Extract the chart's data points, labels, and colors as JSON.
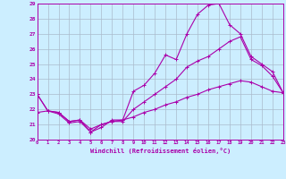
{
  "xlabel": "Windchill (Refroidissement éolien,°C)",
  "xlim": [
    0,
    23
  ],
  "ylim": [
    20,
    29
  ],
  "xticks": [
    0,
    1,
    2,
    3,
    4,
    5,
    6,
    7,
    8,
    9,
    10,
    11,
    12,
    13,
    14,
    15,
    16,
    17,
    18,
    19,
    20,
    21,
    22,
    23
  ],
  "yticks": [
    20,
    21,
    22,
    23,
    24,
    25,
    26,
    27,
    28,
    29
  ],
  "bg_color": "#cceeff",
  "line_color": "#aa00aa",
  "grid_color": "#aabbcc",
  "line1_y": [
    23.0,
    21.9,
    21.7,
    21.1,
    21.2,
    20.5,
    20.8,
    21.3,
    21.3,
    23.2,
    23.6,
    24.4,
    25.6,
    25.3,
    27.0,
    28.3,
    28.9,
    29.0,
    27.6,
    27.0,
    25.5,
    25.0,
    24.5,
    23.1
  ],
  "line2_y": [
    23.0,
    21.9,
    21.8,
    21.2,
    21.3,
    20.5,
    21.0,
    21.2,
    21.2,
    22.0,
    22.5,
    23.0,
    23.5,
    24.0,
    24.8,
    25.2,
    25.5,
    26.0,
    26.5,
    26.8,
    25.3,
    24.9,
    24.2,
    23.1
  ],
  "line3_y": [
    21.8,
    21.9,
    21.8,
    21.2,
    21.3,
    20.7,
    21.0,
    21.2,
    21.3,
    21.5,
    21.8,
    22.0,
    22.3,
    22.5,
    22.8,
    23.0,
    23.3,
    23.5,
    23.7,
    23.9,
    23.8,
    23.5,
    23.2,
    23.1
  ]
}
